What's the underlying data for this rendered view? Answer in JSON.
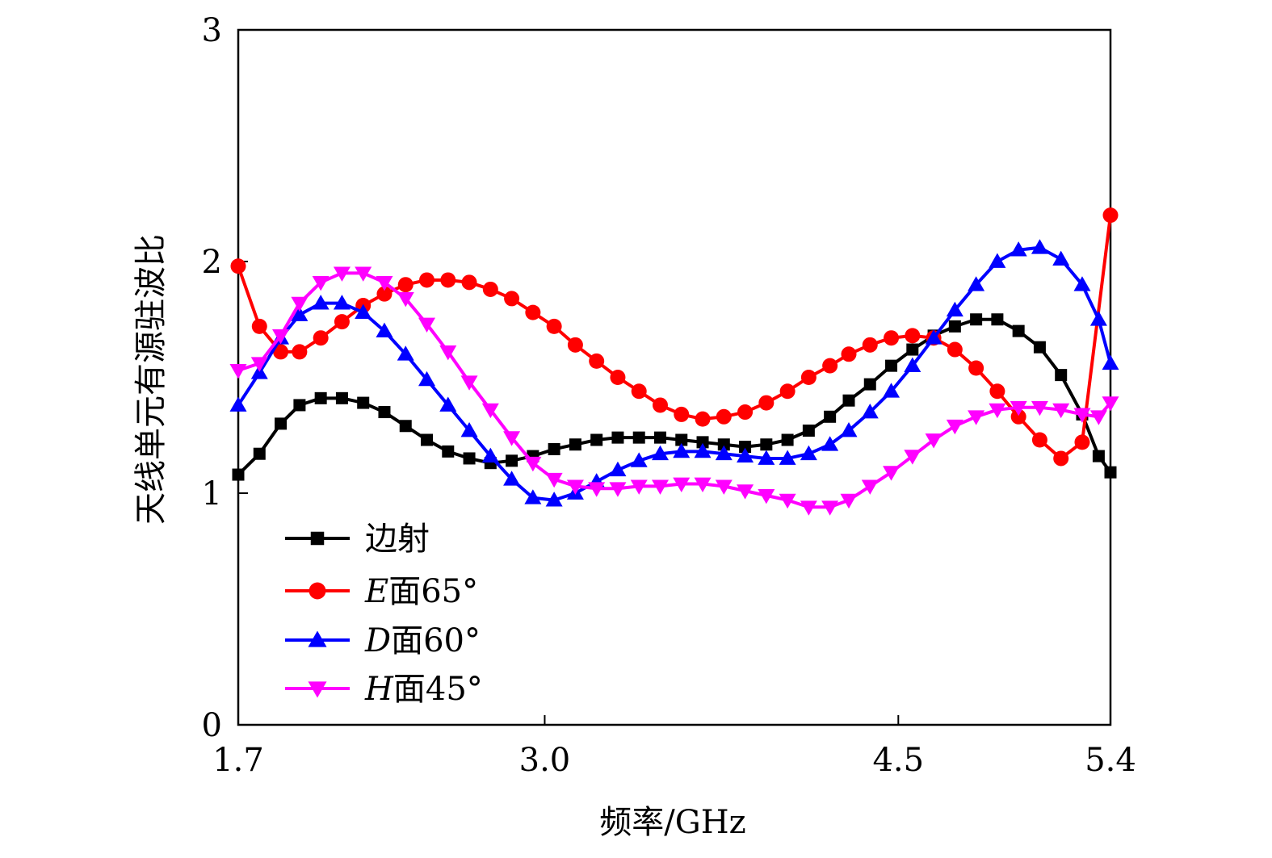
{
  "chart_data": {
    "type": "line",
    "xlabel": "频率/GHz",
    "ylabel": "天线单元有源驻波比",
    "xlim": [
      1.7,
      5.4
    ],
    "ylim": [
      0,
      3
    ],
    "xticks": [
      1.7,
      3.0,
      4.5,
      5.4
    ],
    "xtick_labels": [
      "1.7",
      "3.0",
      "4.5",
      "5.4"
    ],
    "yticks": [
      0,
      1,
      2,
      3
    ],
    "ytick_labels": [
      "0",
      "1",
      "2",
      "3"
    ],
    "grid": false,
    "legend_position": "bottom-left",
    "series": [
      {
        "name": "边射",
        "legend_prefix": "",
        "legend_suffix": "边射",
        "color": "#000000",
        "marker": "square",
        "x": [
          1.7,
          1.79,
          1.88,
          1.96,
          2.05,
          2.14,
          2.23,
          2.32,
          2.41,
          2.5,
          2.59,
          2.68,
          2.77,
          2.86,
          2.95,
          3.04,
          3.13,
          3.22,
          3.31,
          3.4,
          3.49,
          3.58,
          3.67,
          3.76,
          3.85,
          3.94,
          4.03,
          4.12,
          4.21,
          4.29,
          4.38,
          4.47,
          4.56,
          4.65,
          4.74,
          4.83,
          4.92,
          5.01,
          5.1,
          5.19,
          5.28,
          5.35,
          5.4
        ],
        "y": [
          1.08,
          1.17,
          1.3,
          1.38,
          1.41,
          1.41,
          1.39,
          1.35,
          1.29,
          1.23,
          1.18,
          1.15,
          1.13,
          1.14,
          1.16,
          1.19,
          1.21,
          1.23,
          1.24,
          1.24,
          1.24,
          1.23,
          1.22,
          1.21,
          1.2,
          1.21,
          1.23,
          1.27,
          1.33,
          1.4,
          1.47,
          1.55,
          1.62,
          1.68,
          1.72,
          1.75,
          1.75,
          1.7,
          1.63,
          1.51,
          1.34,
          1.16,
          1.09
        ]
      },
      {
        "name": "E面65°",
        "legend_prefix": "E",
        "legend_suffix": "面65°",
        "color": "#ff0000",
        "marker": "circle",
        "x": [
          1.7,
          1.79,
          1.88,
          1.96,
          2.05,
          2.14,
          2.23,
          2.32,
          2.41,
          2.5,
          2.59,
          2.68,
          2.77,
          2.86,
          2.95,
          3.04,
          3.13,
          3.22,
          3.31,
          3.4,
          3.49,
          3.58,
          3.67,
          3.76,
          3.85,
          3.94,
          4.03,
          4.12,
          4.21,
          4.29,
          4.38,
          4.47,
          4.56,
          4.65,
          4.74,
          4.83,
          4.92,
          5.01,
          5.1,
          5.19,
          5.28,
          5.4
        ],
        "y": [
          1.98,
          1.72,
          1.61,
          1.61,
          1.67,
          1.74,
          1.81,
          1.86,
          1.9,
          1.92,
          1.92,
          1.91,
          1.88,
          1.84,
          1.78,
          1.72,
          1.64,
          1.57,
          1.5,
          1.44,
          1.38,
          1.34,
          1.32,
          1.33,
          1.35,
          1.39,
          1.44,
          1.5,
          1.55,
          1.6,
          1.64,
          1.67,
          1.68,
          1.67,
          1.62,
          1.54,
          1.44,
          1.33,
          1.23,
          1.15,
          1.22,
          2.2
        ]
      },
      {
        "name": "D面60°",
        "legend_prefix": "D",
        "legend_suffix": "面60°",
        "color": "#0000ff",
        "marker": "triangle-up",
        "x": [
          1.7,
          1.79,
          1.88,
          1.96,
          2.05,
          2.14,
          2.23,
          2.32,
          2.41,
          2.5,
          2.59,
          2.68,
          2.77,
          2.86,
          2.95,
          3.04,
          3.13,
          3.22,
          3.31,
          3.4,
          3.49,
          3.58,
          3.67,
          3.76,
          3.85,
          3.94,
          4.03,
          4.12,
          4.21,
          4.29,
          4.38,
          4.47,
          4.56,
          4.65,
          4.74,
          4.83,
          4.92,
          5.01,
          5.1,
          5.19,
          5.28,
          5.35,
          5.4
        ],
        "y": [
          1.38,
          1.52,
          1.67,
          1.77,
          1.82,
          1.82,
          1.78,
          1.7,
          1.6,
          1.49,
          1.38,
          1.27,
          1.16,
          1.06,
          0.98,
          0.97,
          1.0,
          1.05,
          1.1,
          1.14,
          1.17,
          1.18,
          1.18,
          1.17,
          1.16,
          1.15,
          1.15,
          1.17,
          1.21,
          1.27,
          1.35,
          1.44,
          1.55,
          1.67,
          1.79,
          1.9,
          2.0,
          2.05,
          2.06,
          2.01,
          1.9,
          1.75,
          1.56
        ]
      },
      {
        "name": "H面45°",
        "legend_prefix": "H",
        "legend_suffix": "面45°",
        "color": "#ff00ff",
        "marker": "triangle-down",
        "x": [
          1.7,
          1.79,
          1.88,
          1.96,
          2.05,
          2.14,
          2.23,
          2.32,
          2.41,
          2.5,
          2.59,
          2.68,
          2.77,
          2.86,
          2.95,
          3.04,
          3.13,
          3.22,
          3.31,
          3.4,
          3.49,
          3.58,
          3.67,
          3.76,
          3.85,
          3.94,
          4.03,
          4.12,
          4.21,
          4.29,
          4.38,
          4.47,
          4.56,
          4.65,
          4.74,
          4.83,
          4.92,
          5.01,
          5.1,
          5.19,
          5.28,
          5.35,
          5.4
        ],
        "y": [
          1.53,
          1.56,
          1.68,
          1.82,
          1.91,
          1.95,
          1.95,
          1.91,
          1.84,
          1.73,
          1.61,
          1.48,
          1.36,
          1.24,
          1.13,
          1.06,
          1.03,
          1.02,
          1.02,
          1.03,
          1.03,
          1.04,
          1.04,
          1.03,
          1.01,
          0.99,
          0.97,
          0.94,
          0.94,
          0.97,
          1.03,
          1.09,
          1.16,
          1.23,
          1.29,
          1.33,
          1.36,
          1.37,
          1.37,
          1.36,
          1.34,
          1.33,
          1.39
        ]
      }
    ]
  }
}
